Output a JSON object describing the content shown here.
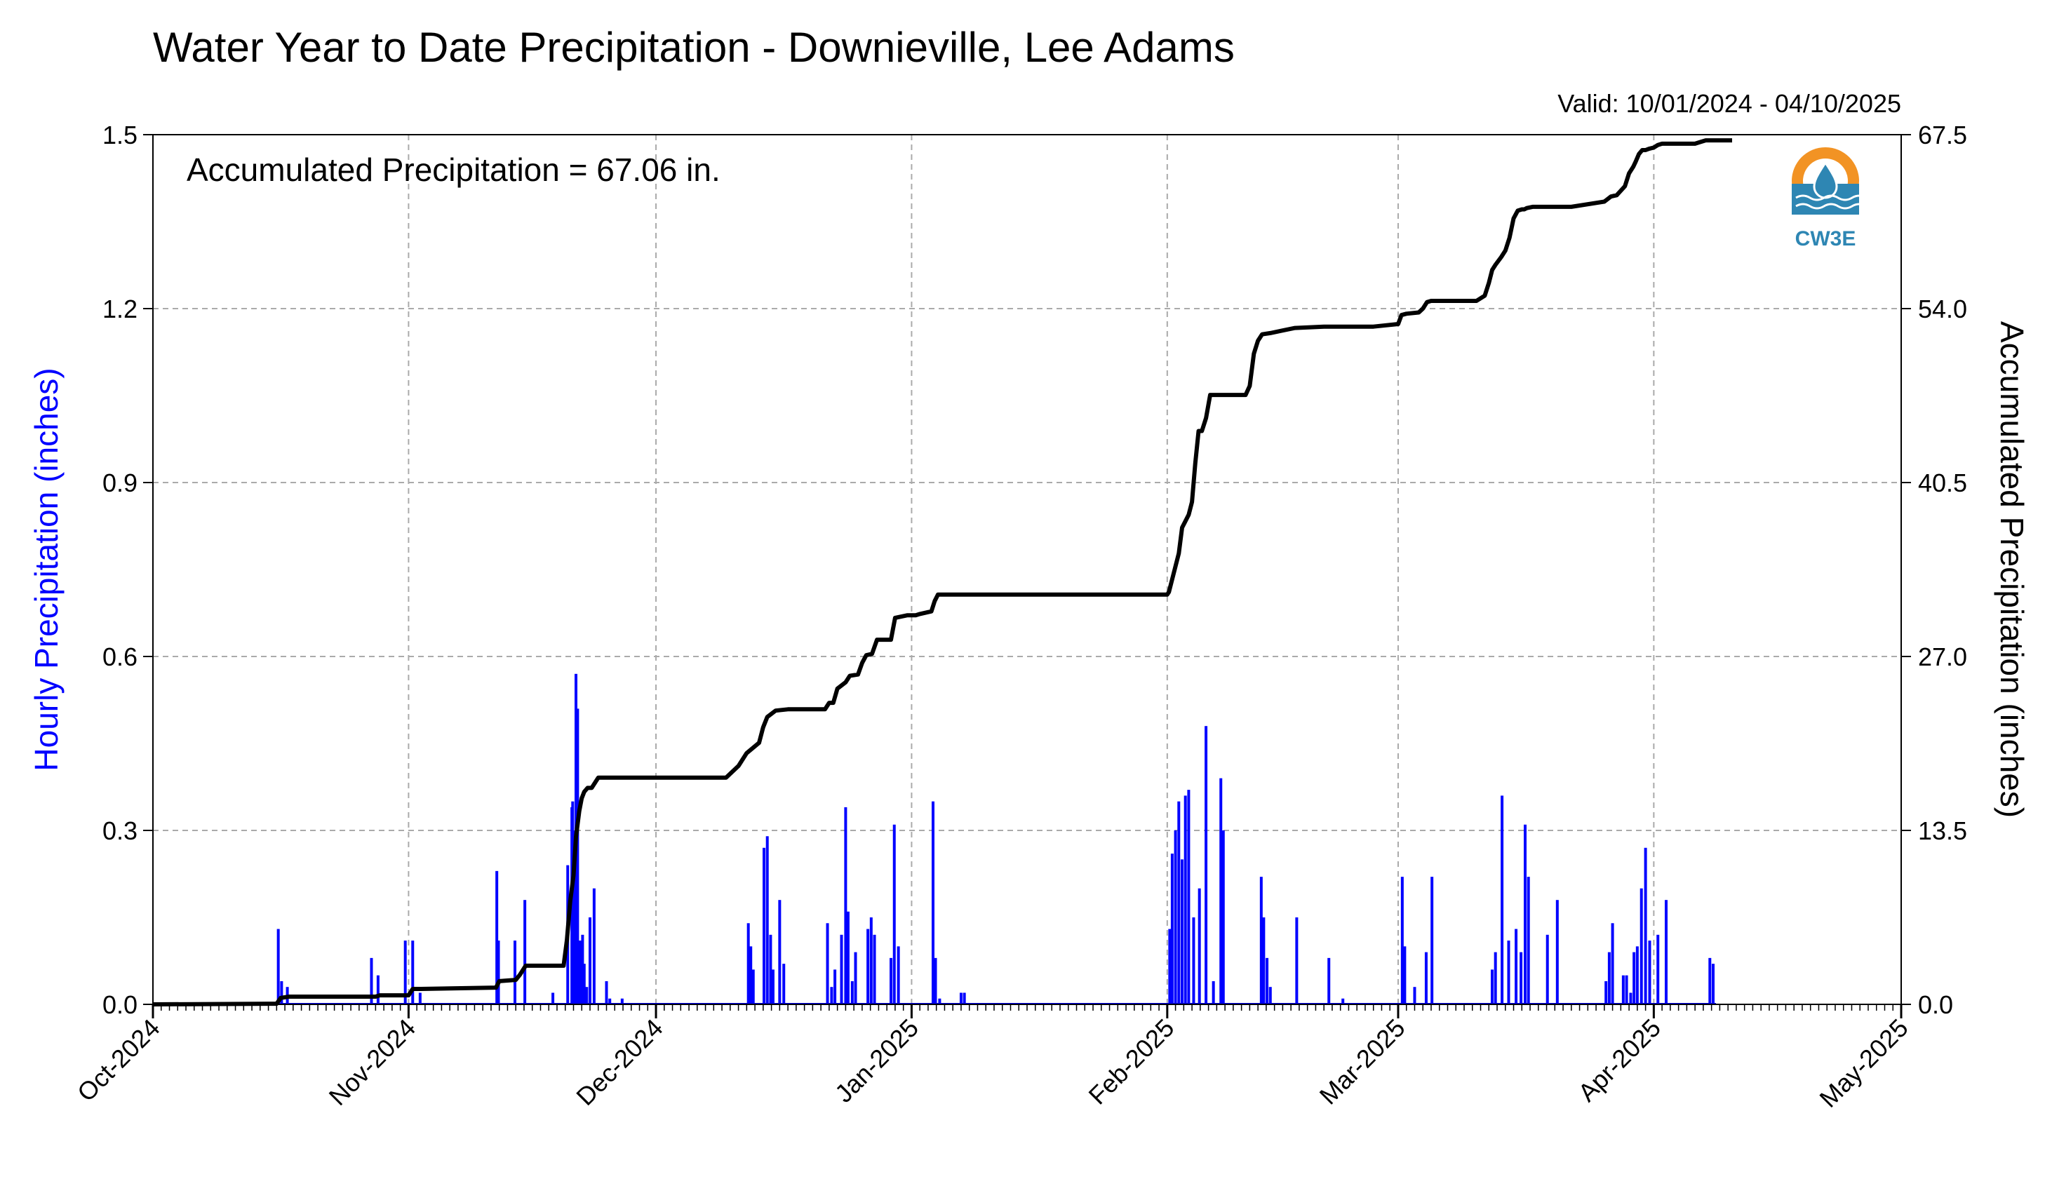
{
  "chart_data": {
    "type": "bar",
    "title": "Water Year to Date Precipitation - Downieville, Lee Adams",
    "subtitle": "Valid: 10/01/2024 - 04/10/2025",
    "annotation": "Accumulated Precipitation = 67.06 in.",
    "logo_text": "CW3E",
    "x_ticks": [
      "Oct-2024",
      "Nov-2024",
      "Dec-2024",
      "Jan-2025",
      "Feb-2025",
      "Mar-2025",
      "Apr-2025",
      "May-2025"
    ],
    "x_tick_days": [
      0,
      31,
      61,
      92,
      123,
      151,
      182,
      212
    ],
    "xlim_days": [
      0,
      212
    ],
    "y_left": {
      "label": "Hourly Precipitation (inches)",
      "ticks": [
        "0.0",
        "0.3",
        "0.6",
        "0.9",
        "1.2",
        "1.5"
      ],
      "ylim": [
        0,
        1.5
      ],
      "color": "#0000ff"
    },
    "y_right": {
      "label": "Accumulated Precipitation (inches)",
      "ticks": [
        "0.0",
        "13.5",
        "27.0",
        "40.5",
        "54.0",
        "67.5"
      ],
      "ylim": [
        0,
        67.5
      ]
    },
    "grid": true,
    "series": [
      {
        "kind": "bar",
        "axis": "left",
        "color": "#0000ff",
        "days": [
          15.2,
          15.6,
          16.3,
          26.5,
          27.3,
          30.6,
          31.5,
          32.4,
          41.7,
          41.9,
          43.9,
          45.1,
          48.5,
          50.3,
          50.8,
          50.9,
          51.1,
          51.3,
          51.5,
          51.8,
          52.1,
          52.3,
          52.6,
          53.0,
          53.5,
          55.0,
          55.4,
          56.9,
          72.2,
          72.5,
          72.8,
          74.1,
          74.5,
          74.9,
          75.2,
          76.0,
          76.5,
          81.8,
          82.3,
          82.7,
          83.5,
          84.0,
          84.3,
          84.8,
          85.2,
          86.7,
          87.1,
          87.5,
          89.5,
          89.9,
          90.4,
          94.6,
          94.9,
          95.4,
          98.0,
          98.4,
          123.3,
          123.6,
          124.0,
          124.4,
          124.8,
          125.2,
          125.6,
          126.2,
          126.9,
          127.7,
          128.6,
          129.5,
          129.8,
          134.4,
          134.7,
          135.1,
          135.5,
          138.7,
          142.6,
          144.3,
          151.5,
          151.8,
          153.0,
          154.4,
          155.1,
          162.4,
          162.8,
          163.6,
          164.4,
          165.3,
          165.9,
          166.4,
          166.8,
          169.1,
          170.3,
          176.2,
          176.6,
          177.0,
          178.3,
          178.7,
          179.2,
          179.6,
          180.0,
          180.5,
          181.0,
          181.5,
          182.5,
          183.5,
          188.8,
          189.2
        ],
        "values": [
          0.13,
          0.04,
          0.03,
          0.08,
          0.05,
          0.11,
          0.11,
          0.02,
          0.23,
          0.11,
          0.11,
          0.18,
          0.02,
          0.24,
          0.34,
          0.35,
          0.3,
          0.57,
          0.51,
          0.11,
          0.12,
          0.07,
          0.03,
          0.15,
          0.2,
          0.04,
          0.01,
          0.01,
          0.14,
          0.1,
          0.06,
          0.27,
          0.29,
          0.12,
          0.06,
          0.18,
          0.07,
          0.14,
          0.03,
          0.06,
          0.12,
          0.34,
          0.16,
          0.04,
          0.09,
          0.13,
          0.15,
          0.12,
          0.08,
          0.31,
          0.1,
          0.35,
          0.08,
          0.01,
          0.02,
          0.02,
          0.13,
          0.26,
          0.3,
          0.35,
          0.25,
          0.36,
          0.37,
          0.15,
          0.2,
          0.48,
          0.04,
          0.39,
          0.3,
          0.22,
          0.15,
          0.08,
          0.03,
          0.15,
          0.08,
          0.01,
          0.22,
          0.1,
          0.03,
          0.09,
          0.22,
          0.06,
          0.09,
          0.36,
          0.11,
          0.13,
          0.09,
          0.31,
          0.22,
          0.12,
          0.18,
          0.04,
          0.09,
          0.14,
          0.05,
          0.05,
          0.02,
          0.09,
          0.1,
          0.2,
          0.27,
          0.11,
          0.12,
          0.18,
          0.08,
          0.07
        ]
      },
      {
        "kind": "line",
        "axis": "right",
        "color": "#000000",
        "days": [
          0,
          15.0,
          15.5,
          16.5,
          27.0,
          27.5,
          31.0,
          31.5,
          32.5,
          41.6,
          42.0,
          44.0,
          44.5,
          45.2,
          49.8,
          50.2,
          50.6,
          51.0,
          51.3,
          51.7,
          52.0,
          52.3,
          52.7,
          53.2,
          54.0,
          55.5,
          69.5,
          71.0,
          72.0,
          73.5,
          74.0,
          74.5,
          75.5,
          77.0,
          81.5,
          82.0,
          82.5,
          83.0,
          84.0,
          84.5,
          85.5,
          86.0,
          86.5,
          87.2,
          87.8,
          89.5,
          90.0,
          91.5,
          92.5,
          93.0,
          94.4,
          94.8,
          95.2,
          96.0,
          123.0,
          123.2,
          123.6,
          124.0,
          124.4,
          124.8,
          125.2,
          125.6,
          126.0,
          126.4,
          126.8,
          127.2,
          127.7,
          128.2,
          129.0,
          132.5,
          133.0,
          133.5,
          134.0,
          134.5,
          135.5,
          137.0,
          138.5,
          142.0,
          143.0,
          148.0,
          151.0,
          151.4,
          152.0,
          153.5,
          154.0,
          154.5,
          155.0,
          155.5,
          160.5,
          161.5,
          162.0,
          162.4,
          162.8,
          163.5,
          164.0,
          164.5,
          165.0,
          165.5,
          166.0,
          166.3,
          166.6,
          167.3,
          169.0,
          169.5,
          172.0,
          176.0,
          176.8,
          177.5,
          178.5,
          179.0,
          179.5,
          179.8,
          180.2,
          180.6,
          181.0,
          181.4,
          182.0,
          182.5,
          183.0,
          187.0,
          187.5,
          188.3,
          189.0,
          191.5
        ],
        "values": [
          0,
          0.05,
          0.5,
          0.6,
          0.6,
          0.7,
          0.7,
          1.2,
          1.2,
          1.3,
          1.8,
          1.9,
          2.3,
          3.0,
          3.0,
          5.0,
          8.0,
          10.0,
          13.0,
          15.0,
          16.0,
          16.5,
          16.8,
          16.8,
          17.6,
          17.6,
          17.6,
          18.5,
          19.5,
          20.3,
          21.5,
          22.3,
          22.8,
          22.9,
          22.9,
          23.4,
          23.4,
          24.5,
          25.0,
          25.5,
          25.6,
          26.5,
          27.1,
          27.2,
          28.3,
          28.3,
          30.0,
          30.2,
          30.2,
          30.3,
          30.5,
          31.3,
          31.8,
          31.8,
          31.8,
          32.0,
          33.0,
          34.0,
          35.0,
          37.0,
          37.5,
          38.0,
          39.0,
          42.0,
          44.5,
          44.5,
          45.5,
          47.3,
          47.3,
          47.3,
          48.0,
          50.5,
          51.5,
          52.0,
          52.1,
          52.3,
          52.5,
          52.6,
          52.6,
          52.6,
          52.8,
          53.5,
          53.6,
          53.7,
          54.0,
          54.5,
          54.6,
          54.6,
          54.6,
          55.0,
          56.0,
          57.0,
          57.4,
          58.0,
          58.5,
          59.5,
          61.0,
          61.6,
          61.7,
          61.7,
          61.8,
          61.9,
          61.9,
          61.9,
          61.9,
          62.3,
          62.7,
          62.8,
          63.5,
          64.5,
          65.0,
          65.4,
          66.0,
          66.3,
          66.3,
          66.4,
          66.5,
          66.7,
          66.8,
          66.8,
          66.9,
          67.06,
          67.06,
          67.06
        ]
      }
    ]
  }
}
